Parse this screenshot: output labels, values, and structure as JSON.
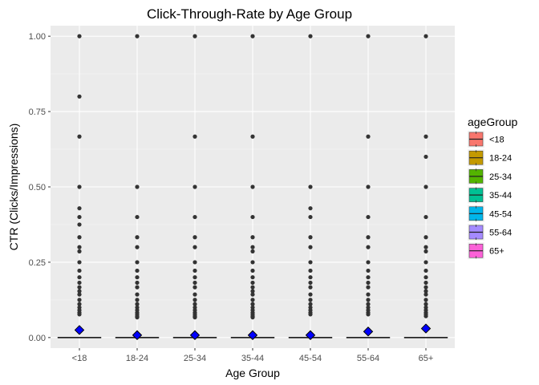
{
  "chart_data": {
    "type": "boxplot",
    "title": "Click-Through-Rate by Age Group",
    "xlabel": "Age Group",
    "ylabel": "CTR (Clicks/Impressions)",
    "ylim": [
      -0.035,
      1.035
    ],
    "yticks": [
      0.0,
      0.25,
      0.5,
      0.75,
      1.0
    ],
    "ytick_labels": [
      "0.00",
      "0.25",
      "0.50",
      "0.75",
      "1.00"
    ],
    "grid": true,
    "legend": {
      "title": "ageGroup",
      "position": "right"
    },
    "categories": [
      "<18",
      "18-24",
      "25-34",
      "35-44",
      "45-54",
      "55-64",
      "65+"
    ],
    "colors": [
      "#F8766D",
      "#C49A00",
      "#53B400",
      "#00C094",
      "#00B6EB",
      "#A58AFF",
      "#FB61D7"
    ],
    "box": {
      "q1": 0.0,
      "median": 0.0,
      "q3": 0.0,
      "whisker_low": 0.0,
      "whisker_high": 0.0
    },
    "means": [
      0.025,
      0.008,
      0.008,
      0.008,
      0.008,
      0.02,
      0.03
    ],
    "mean_marker_color": "#0000FF",
    "outliers": [
      [
        1.0,
        0.8,
        0.667,
        0.5,
        0.429,
        0.4,
        0.375,
        0.333,
        0.3,
        0.286,
        0.25,
        0.222,
        0.2,
        0.182,
        0.167,
        0.154,
        0.143,
        0.125,
        0.111,
        0.1,
        0.091,
        0.083,
        0.077
      ],
      [
        1.0,
        0.5,
        0.4,
        0.333,
        0.3,
        0.25,
        0.222,
        0.2,
        0.182,
        0.167,
        0.143,
        0.125,
        0.111,
        0.1,
        0.091,
        0.083,
        0.077,
        0.071,
        0.067
      ],
      [
        1.0,
        0.667,
        0.5,
        0.4,
        0.333,
        0.3,
        0.25,
        0.222,
        0.2,
        0.182,
        0.167,
        0.143,
        0.125,
        0.111,
        0.1,
        0.091,
        0.083,
        0.077,
        0.071,
        0.067
      ],
      [
        1.0,
        0.667,
        0.5,
        0.4,
        0.333,
        0.3,
        0.286,
        0.25,
        0.222,
        0.2,
        0.182,
        0.167,
        0.154,
        0.143,
        0.125,
        0.111,
        0.1,
        0.091,
        0.083,
        0.077,
        0.071,
        0.067
      ],
      [
        1.0,
        0.5,
        0.429,
        0.4,
        0.333,
        0.3,
        0.25,
        0.222,
        0.2,
        0.182,
        0.167,
        0.143,
        0.125,
        0.111,
        0.1,
        0.091,
        0.083,
        0.077
      ],
      [
        1.0,
        0.667,
        0.5,
        0.4,
        0.333,
        0.3,
        0.25,
        0.222,
        0.2,
        0.182,
        0.167,
        0.143,
        0.125,
        0.111,
        0.1,
        0.091,
        0.083,
        0.077
      ],
      [
        1.0,
        0.667,
        0.6,
        0.5,
        0.4,
        0.333,
        0.3,
        0.286,
        0.25,
        0.222,
        0.2,
        0.182,
        0.167,
        0.154,
        0.143,
        0.125,
        0.111,
        0.1,
        0.091,
        0.083,
        0.077,
        0.071
      ]
    ]
  }
}
